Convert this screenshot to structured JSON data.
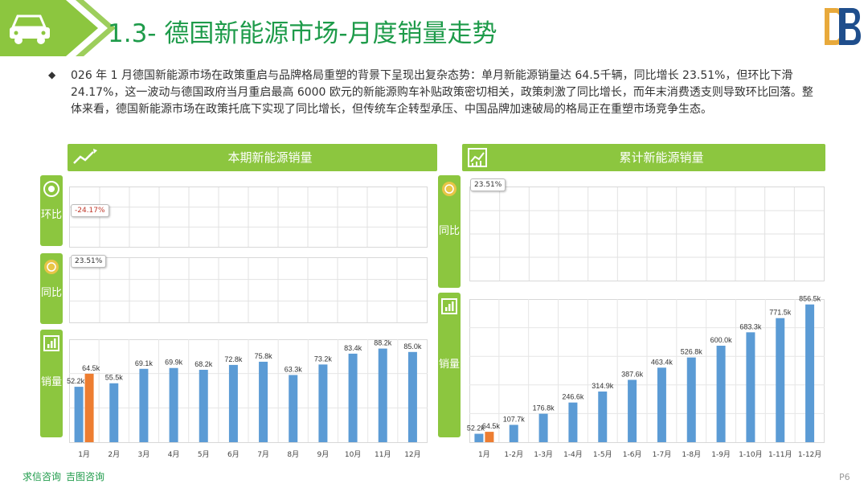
{
  "header": {
    "title": "1.3- 德国新能源市场-月度销量走势"
  },
  "intro": {
    "text": "026 年 1 月德国新能源市场在政策重启与品牌格局重塑的背景下呈现出复杂态势：单月新能源销量达 64.5千辆，同比增长 23.51%，但环比下滑 24.17%，这一波动与德国政府当月重启最高 6000 欧元的新能源购车补贴政策密切相关，政策刺激了同比增长，而年末消费透支则导致环比回落。整体来看，德国新能源市场在政策托底下实现了同比增长，但传统车企转型承压、中国品牌加速破局的格局正在重塑市场竞争生态。"
  },
  "left_panel": {
    "title": "本期新能源销量",
    "tabs": {
      "mom": "环比",
      "yoy": "同比",
      "sales": "销量"
    },
    "mom_value": "-24.17%",
    "yoy_value": "23.51%"
  },
  "right_panel": {
    "title": "累计新能源销量",
    "tabs": {
      "yoy": "同比",
      "sales": "销量"
    },
    "yoy_value": "23.51%"
  },
  "chart_data": [
    {
      "type": "bar",
      "title": "本期新能源销量",
      "categories": [
        "1月",
        "2月",
        "3月",
        "4月",
        "5月",
        "6月",
        "7月",
        "8月",
        "9月",
        "10月",
        "11月",
        "12月"
      ],
      "series": [
        {
          "values": [
            52.2,
            55.5,
            69.1,
            69.9,
            68.2,
            72.8,
            75.8,
            63.3,
            73.2,
            83.4,
            88.2,
            85.0
          ],
          "labels": [
            "52.2k",
            "55.5k",
            "69.1k",
            "69.9k",
            "68.2k",
            "72.8k",
            "75.8k",
            "63.3k",
            "73.2k",
            "83.4k",
            "88.2k",
            "85.0k"
          ],
          "color": "#5b9bd5"
        },
        {
          "values": [
            64.5,
            null,
            null,
            null,
            null,
            null,
            null,
            null,
            null,
            null,
            null,
            null
          ],
          "labels": [
            "64.5k",
            "",
            "",
            "",
            "",
            "",
            "",
            "",
            "",
            "",
            "",
            ""
          ],
          "color": "#ed7d31"
        }
      ],
      "ylim": [
        0,
        100
      ]
    },
    {
      "type": "bar",
      "title": "累计新能源销量",
      "categories": [
        "1月",
        "1-2月",
        "1-3月",
        "1-4月",
        "1-5月",
        "1-6月",
        "1-7月",
        "1-8月",
        "1-9月",
        "1-10月",
        "1-11月",
        "1-12月"
      ],
      "series": [
        {
          "values": [
            52.2,
            107.7,
            176.8,
            246.6,
            314.9,
            387.6,
            463.4,
            526.8,
            600.0,
            683.3,
            771.5,
            856.5
          ],
          "labels": [
            "52.2k",
            "107.7k",
            "176.8k",
            "246.6k",
            "314.9k",
            "387.6k",
            "463.4k",
            "526.8k",
            "600.0k",
            "683.3k",
            "771.5k",
            "856.5k"
          ],
          "color": "#5b9bd5"
        },
        {
          "values": [
            64.5,
            null,
            null,
            null,
            null,
            null,
            null,
            null,
            null,
            null,
            null,
            null
          ],
          "labels": [
            "64.5k",
            "",
            "",
            "",
            "",
            "",
            "",
            "",
            "",
            "",
            "",
            ""
          ],
          "color": "#ed7d31"
        }
      ],
      "ylim": [
        0,
        900
      ]
    }
  ],
  "footer": {
    "brand1": "求信咨询",
    "brand2": "吉图咨询",
    "page": "P6"
  },
  "colors": {
    "green_dark": "#1e9b4a",
    "green_light": "#8cc63f",
    "bar_blue": "#5b9bd5",
    "bar_orange": "#ed7d31"
  }
}
